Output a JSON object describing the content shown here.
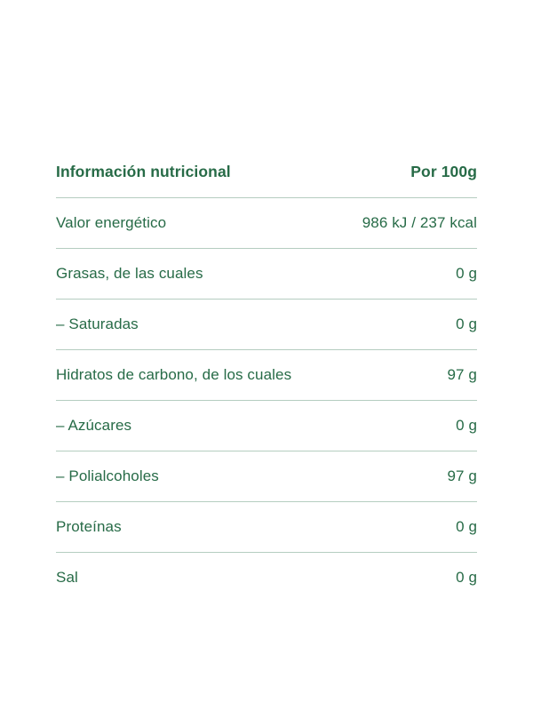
{
  "table": {
    "header": {
      "title": "Información nutricional",
      "unit": "Por 100g"
    },
    "rows": [
      {
        "label": "Valor energético",
        "value": "986 kJ / 237 kcal"
      },
      {
        "label": "Grasas, de las cuales",
        "value": "0 g"
      },
      {
        "label": "– Saturadas",
        "value": "0 g"
      },
      {
        "label": "Hidratos de carbono, de los cuales",
        "value": "97 g"
      },
      {
        "label": "– Azúcares",
        "value": "0 g"
      },
      {
        "label": "– Polialcoholes",
        "value": "97 g"
      },
      {
        "label": "Proteínas",
        "value": "0 g"
      },
      {
        "label": "Sal",
        "value": "0 g"
      }
    ],
    "colors": {
      "text_green": "#276b47",
      "divider_green": "#b5cdc0",
      "background": "#ffffff"
    }
  }
}
